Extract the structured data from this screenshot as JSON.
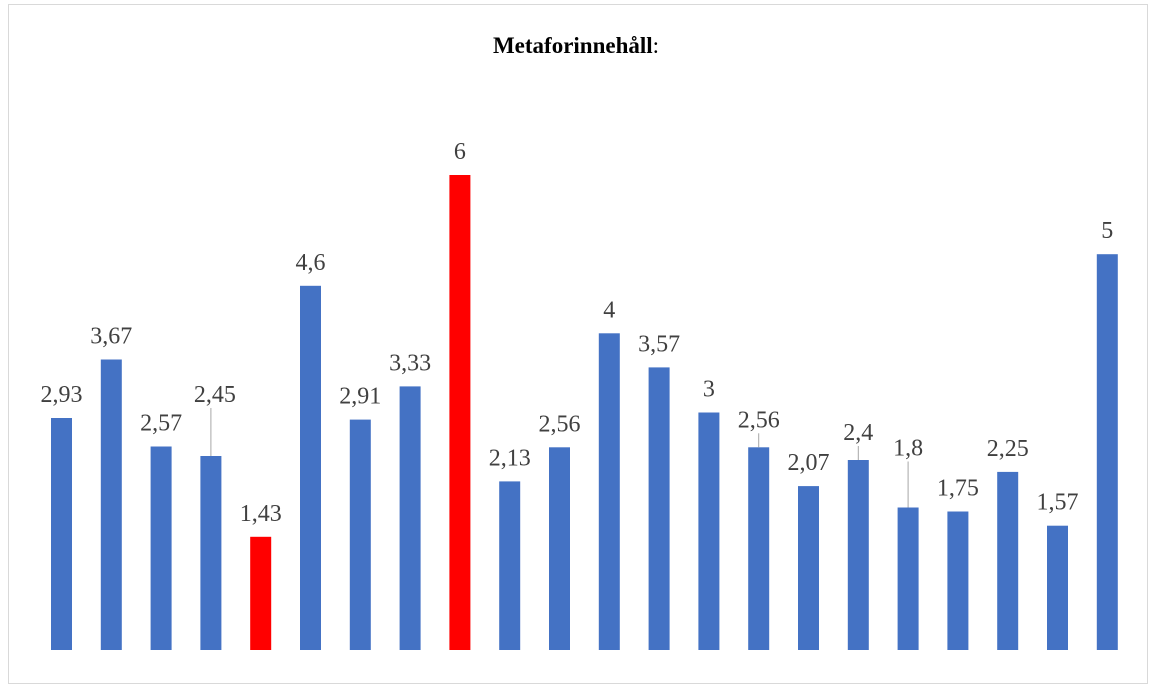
{
  "chart_data": {
    "type": "bar",
    "title": "Metaforinnehåll",
    "title_suffix": ":",
    "xlabel": "",
    "ylabel": "",
    "ylim": [
      0,
      6.2
    ],
    "grid": false,
    "legend": "none",
    "values": [
      2.93,
      3.67,
      2.57,
      2.45,
      1.43,
      4.6,
      2.91,
      3.33,
      6,
      2.13,
      2.56,
      4,
      3.57,
      3,
      2.56,
      2.07,
      2.4,
      1.8,
      1.75,
      2.25,
      1.57,
      5
    ],
    "data_labels": [
      "2,93",
      "3,67",
      "2,57",
      "2,45",
      "1,43",
      "4,6",
      "2,91",
      "3,33",
      "6",
      "2,13",
      "2,56",
      "4",
      "3,57",
      "3",
      "2,56",
      "2,07",
      "2,4",
      "1,8",
      "1,75",
      "2,25",
      "1,57",
      "5"
    ],
    "highlighted_indices": [
      4,
      8
    ],
    "colors": {
      "bar": "#4472C4",
      "highlight": "#FF0000",
      "label": "#404040",
      "leader_line": "#A6A6A6"
    }
  }
}
